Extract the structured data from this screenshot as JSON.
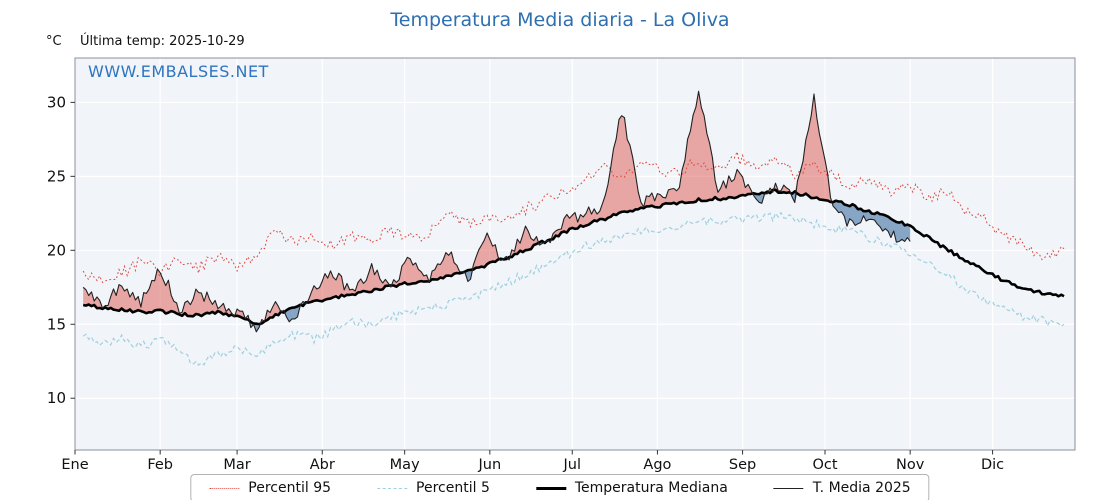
{
  "title": "Temperatura Media diaria - La Oliva",
  "unit_label": "°C",
  "last_temp_label": "Última temp: 2025-10-29",
  "watermark": "WWW.EMBALSES.NET",
  "colors": {
    "title_blue": "#2e6fb0",
    "watermark_blue": "#2f74c0",
    "p95_red": "#dc4a3f",
    "p5_blue": "#9fd0e0",
    "median_black": "#000000",
    "t2025_black": "#222222",
    "fill_above": "rgba(222,88,80,0.50)",
    "fill_below": "rgba(90,133,177,0.70)",
    "panel_bg": "#f1f4f8",
    "grid_white": "#ffffff"
  },
  "chart_data": {
    "type": "line",
    "title": "Temperatura Media diaria - La Oliva",
    "ylabel": "°C",
    "xlim": [
      1,
      365
    ],
    "ylim": [
      6.5,
      33
    ],
    "grid": true,
    "legend_position": "bottom",
    "x_tick_labels": [
      "Ene",
      "Feb",
      "Mar",
      "Abr",
      "May",
      "Jun",
      "Jul",
      "Ago",
      "Sep",
      "Oct",
      "Nov",
      "Dic"
    ],
    "month_start_days": [
      1,
      32,
      60,
      91,
      121,
      152,
      182,
      213,
      244,
      274,
      305,
      335
    ],
    "yticks": [
      10,
      15,
      20,
      25,
      30
    ],
    "x_days": [
      4,
      11,
      18,
      25,
      32,
      39,
      46,
      53,
      60,
      67,
      74,
      81,
      88,
      95,
      102,
      109,
      116,
      123,
      130,
      137,
      144,
      151,
      158,
      165,
      172,
      179,
      186,
      193,
      200,
      207,
      214,
      221,
      228,
      235,
      242,
      249,
      256,
      263,
      270,
      277,
      284,
      291,
      298,
      305,
      312,
      319,
      326,
      333,
      340,
      347,
      354,
      361
    ],
    "series": [
      {
        "name": "Percentil 95",
        "style": "dotted",
        "color": "#dc4a3f",
        "values": [
          18.6,
          17.9,
          18.4,
          19.3,
          18.5,
          19.5,
          18.8,
          19.6,
          18.9,
          19.8,
          21.3,
          20.6,
          20.9,
          20.4,
          21.0,
          20.6,
          21.4,
          20.8,
          21.2,
          22.6,
          21.8,
          22.3,
          22.0,
          22.8,
          23.4,
          24.0,
          24.6,
          25.6,
          24.8,
          26.0,
          25.4,
          25.2,
          26.1,
          25.5,
          26.3,
          25.6,
          26.2,
          25.2,
          25.8,
          25.0,
          24.4,
          24.8,
          23.9,
          24.3,
          23.5,
          24.0,
          22.6,
          21.9,
          21.0,
          20.3,
          19.6,
          20.1
        ]
      },
      {
        "name": "Percentil 5",
        "style": "dashed",
        "color": "#9fd0e0",
        "values": [
          14.2,
          13.8,
          14.0,
          13.5,
          13.9,
          13.2,
          12.1,
          13.0,
          13.4,
          13.0,
          13.8,
          14.3,
          14.0,
          14.6,
          15.2,
          15.0,
          15.5,
          15.8,
          16.0,
          16.4,
          16.8,
          17.2,
          17.8,
          18.4,
          19.0,
          19.6,
          20.2,
          20.7,
          21.0,
          21.3,
          21.5,
          21.7,
          21.9,
          22.0,
          22.1,
          22.2,
          22.3,
          22.1,
          21.8,
          21.5,
          21.2,
          20.8,
          20.3,
          19.8,
          19.0,
          18.2,
          17.4,
          16.6,
          16.0,
          15.5,
          15.2,
          15.0
        ]
      },
      {
        "name": "Temperatura Mediana",
        "style": "solid-thick",
        "color": "#000000",
        "values": [
          16.3,
          16.1,
          16.0,
          15.8,
          15.9,
          15.7,
          15.6,
          15.8,
          15.5,
          15.0,
          15.6,
          16.2,
          16.5,
          16.8,
          17.0,
          17.3,
          17.6,
          17.8,
          18.0,
          18.3,
          18.6,
          19.0,
          19.5,
          20.0,
          20.6,
          21.2,
          21.7,
          22.1,
          22.5,
          22.8,
          23.0,
          23.2,
          23.4,
          23.5,
          23.6,
          23.8,
          24.0,
          23.9,
          23.6,
          23.3,
          23.0,
          22.6,
          22.2,
          21.6,
          20.8,
          20.0,
          19.2,
          18.5,
          17.9,
          17.4,
          17.1,
          16.9
        ]
      },
      {
        "name": "T. Media 2025",
        "style": "solid-thin",
        "color": "#222222",
        "values": [
          17.5,
          16.2,
          17.8,
          16.5,
          18.8,
          16.0,
          17.2,
          16.3,
          15.8,
          14.8,
          16.4,
          15.2,
          17.6,
          18.4,
          17.2,
          18.8,
          17.6,
          19.4,
          18.2,
          19.8,
          18.0,
          20.9,
          19.2,
          21.4,
          20.2,
          22.0,
          22.4,
          23.0,
          29.5,
          23.2,
          23.8,
          24.2,
          31.0,
          24.0,
          25.3,
          23.2,
          24.5,
          23.4,
          30.4,
          22.6,
          21.8,
          22.4,
          21.0,
          20.6
        ]
      }
    ],
    "fill_above_color": "rgba(222,88,80,0.50)",
    "fill_below_color": "rgba(90,133,177,0.70)",
    "annotations": [
      "2025 series ends 2025-10-29; red fill where 2025 above median, blue fill where below"
    ]
  }
}
